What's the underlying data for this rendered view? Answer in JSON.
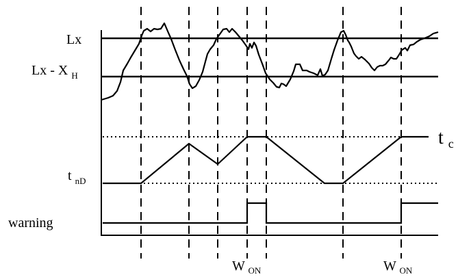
{
  "labels": {
    "lx": "Lx",
    "lx_minus_xh_main": "Lx - X",
    "lx_minus_xh_sub": "H",
    "t_main": "t",
    "t_sub": "c",
    "tnd_main": "t",
    "tnd_sub": "nD",
    "warning": "warning",
    "won1_main": "W",
    "won1_sub": "ON",
    "won2_main": "W",
    "won2_sub": "ON"
  },
  "colors": {
    "ink": "#000000",
    "background": "#ffffff"
  }
}
